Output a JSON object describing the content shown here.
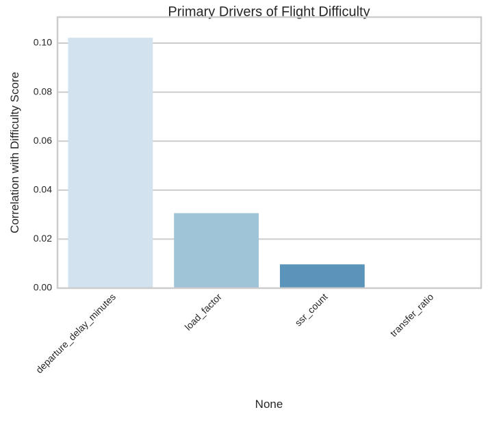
{
  "chart_data": {
    "type": "bar",
    "title": "Primary Drivers of Flight Difficulty",
    "xlabel": "None",
    "ylabel": "Correlation with Difficulty Score",
    "categories": [
      "departure_delay_minutes",
      "load_factor",
      "ssr_count",
      "transfer_ratio"
    ],
    "values": [
      0.1022,
      0.0306,
      0.0097,
      0.0
    ],
    "colors": [
      "#d3e2ef",
      "#9fc3d7",
      "#5b94bb",
      "#2b6aa2"
    ],
    "ylim": [
      0,
      0.1075
    ],
    "yticks": [
      0.0,
      0.02,
      0.04,
      0.06,
      0.08,
      0.1
    ],
    "ytick_labels": [
      "0.00",
      "0.02",
      "0.04",
      "0.06",
      "0.08",
      "0.10"
    ],
    "grid": "horizontal",
    "grid_color": "#cccccc"
  }
}
